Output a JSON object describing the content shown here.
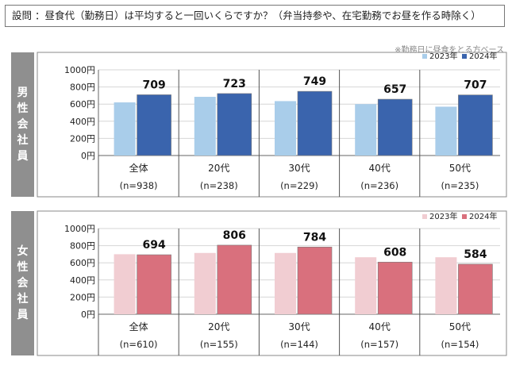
{
  "question": "設問 ：昼食代（勤務日）は平均すると一回いくらですか？（弁当持参や、在宅勤務でお昼を作る時除く）",
  "note": "※勤務日に昼食をとる方ベース",
  "chart_data": [
    {
      "type": "bar",
      "panel_label": [
        "男",
        "性",
        "会",
        "社",
        "員"
      ],
      "categories": [
        "全体",
        "20代",
        "30代",
        "40代",
        "50代"
      ],
      "counts": [
        "(n=938)",
        "(n=238)",
        "(n=229)",
        "(n=236)",
        "(n=235)"
      ],
      "series": [
        {
          "name": "2023年",
          "values": [
            620,
            685,
            635,
            600,
            570
          ],
          "color": "#a9cdea",
          "labeled": false
        },
        {
          "name": "2024年",
          "values": [
            709,
            723,
            749,
            657,
            707
          ],
          "color": "#3a64ad",
          "labeled": true
        }
      ],
      "y_ticks": [
        "0円",
        "200円",
        "400円",
        "600円",
        "800円",
        "1000円"
      ],
      "ylim": [
        0,
        1000
      ],
      "legend_position": "top-right",
      "grid": true
    },
    {
      "type": "bar",
      "panel_label": [
        "女",
        "性",
        "会",
        "社",
        "員"
      ],
      "categories": [
        "全体",
        "20代",
        "30代",
        "40代",
        "50代"
      ],
      "counts": [
        "(n=610)",
        "(n=155)",
        "(n=144)",
        "(n=157)",
        "(n=154)"
      ],
      "series": [
        {
          "name": "2023年",
          "values": [
            700,
            715,
            715,
            665,
            665
          ],
          "color": "#f1cdd2",
          "labeled": false
        },
        {
          "name": "2024年",
          "values": [
            694,
            806,
            784,
            608,
            584
          ],
          "color": "#d9707d",
          "labeled": true
        }
      ],
      "y_ticks": [
        "0円",
        "200円",
        "400円",
        "600円",
        "800円",
        "1000円"
      ],
      "ylim": [
        0,
        1000
      ],
      "legend_position": "top-right",
      "grid": true
    }
  ]
}
